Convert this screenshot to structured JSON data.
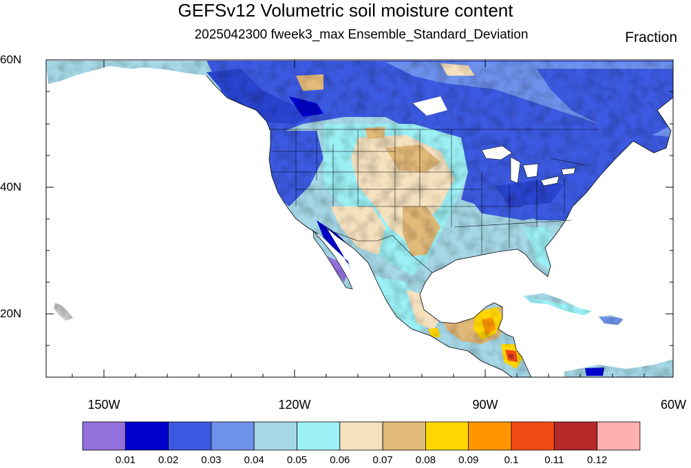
{
  "figure": {
    "title": "GEFSv12 Volumetric soil moisture content",
    "subtitle": "2025042300 fweek3_max Ensemble_Standard_Deviation",
    "units": "Fraction"
  },
  "map": {
    "projection": "cylindrical equidistant",
    "lon_range": [
      -159,
      -60
    ],
    "lat_range": [
      10,
      60
    ],
    "lat_ticks": [
      "60N",
      "40N",
      "20N"
    ],
    "lon_ticks": [
      "150W",
      "120W",
      "90W",
      "60W"
    ],
    "variable": "Volumetric soil moisture content, ensemble standard deviation",
    "features": {
      "higher_spread_regions": [
        "Southern Mexico",
        "Guatemala / Belize",
        "Honduras / Nicaragua"
      ],
      "lower_spread_regions": [
        "Baja California",
        "Sierra Madre Occidental",
        "Eastern United States",
        "Pacific Northwest"
      ]
    }
  },
  "colorbar": {
    "colors": [
      "#9370db",
      "#0000cd",
      "#3c5ae1",
      "#6e91eb",
      "#a5d7e6",
      "#9bf0f5",
      "#f5e1be",
      "#e1b978",
      "#ffd700",
      "#ff9600",
      "#f04b14",
      "#b42828",
      "#ffafaf"
    ],
    "labels": [
      "0.01",
      "0.02",
      "0.03",
      "0.04",
      "0.05",
      "0.06",
      "0.07",
      "0.08",
      "0.09",
      "0.1",
      "0.11",
      "0.12"
    ]
  }
}
